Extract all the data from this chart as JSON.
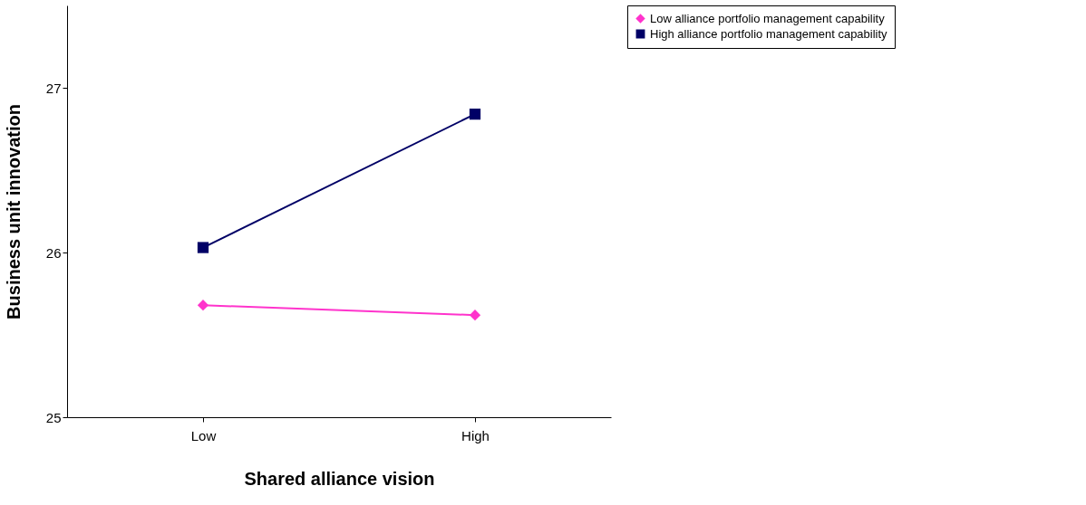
{
  "chart_data": {
    "type": "line",
    "xlabel": "Shared alliance vision",
    "ylabel": "Business unit innovation",
    "categories": [
      "Low",
      "High"
    ],
    "series": [
      {
        "name": "Low alliance portfolio management capability",
        "color": "#ff33cc",
        "values": [
          25.68,
          25.62
        ],
        "marker": "diamond"
      },
      {
        "name": "High alliance portfolio management capability",
        "color": "#000066",
        "values": [
          26.03,
          26.84
        ],
        "marker": "square"
      }
    ],
    "ylim": [
      25,
      27.5
    ],
    "yticks": [
      25,
      26,
      27
    ],
    "grid": false,
    "legend": "right",
    "line_style": "solid"
  }
}
